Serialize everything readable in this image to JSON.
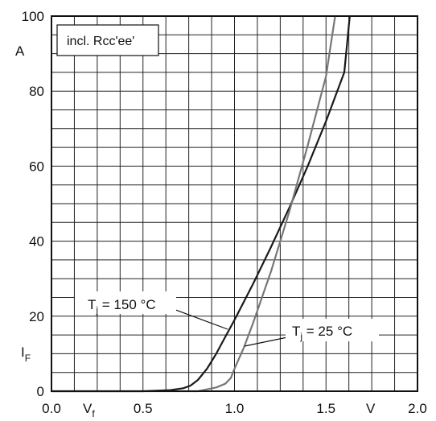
{
  "chart_data": {
    "type": "line",
    "title": "",
    "note": "incl. Rcc'ee'",
    "x_axis": {
      "range": [
        0,
        2
      ],
      "ticks": [
        0,
        0.5,
        1.0,
        1.5,
        2.0
      ],
      "tick_labels": [
        "0.0",
        "0.5",
        "1.0",
        "1.5",
        "2.0"
      ],
      "label": "V",
      "unit": "V",
      "minor_step": 0.125
    },
    "y_axis": {
      "range": [
        0,
        100
      ],
      "ticks": [
        0,
        20,
        40,
        60,
        80,
        100
      ],
      "tick_labels": [
        "0",
        "20",
        "40",
        "60",
        "80",
        "100"
      ],
      "label": "I",
      "label_sub": "F",
      "unit": "A",
      "minor_step": 5
    },
    "grid": true,
    "series": [
      {
        "name": "T",
        "name_sub": "j",
        "name_suffix": " = 150 °C",
        "color": "#1a1a1a",
        "x": [
          0.0,
          0.5,
          0.65,
          0.72,
          0.76,
          0.8,
          0.85,
          0.9,
          0.95,
          1.0,
          1.1,
          1.2,
          1.3,
          1.4,
          1.5,
          1.6,
          1.63
        ],
        "y": [
          0,
          0,
          0.3,
          0.8,
          1.5,
          3,
          6,
          10,
          14.5,
          19,
          28.5,
          38.5,
          49,
          60,
          72,
          85,
          100
        ]
      },
      {
        "name": "T",
        "name_sub": "j",
        "name_suffix": " = 25 °C",
        "color": "#777777",
        "x": [
          0.0,
          0.8,
          0.9,
          0.95,
          0.98,
          1.0,
          1.05,
          1.1,
          1.2,
          1.3,
          1.4,
          1.5,
          1.55
        ],
        "y": [
          0,
          0,
          1,
          2,
          3.5,
          6,
          11.5,
          18,
          32,
          48,
          65.5,
          84,
          100
        ]
      }
    ]
  }
}
